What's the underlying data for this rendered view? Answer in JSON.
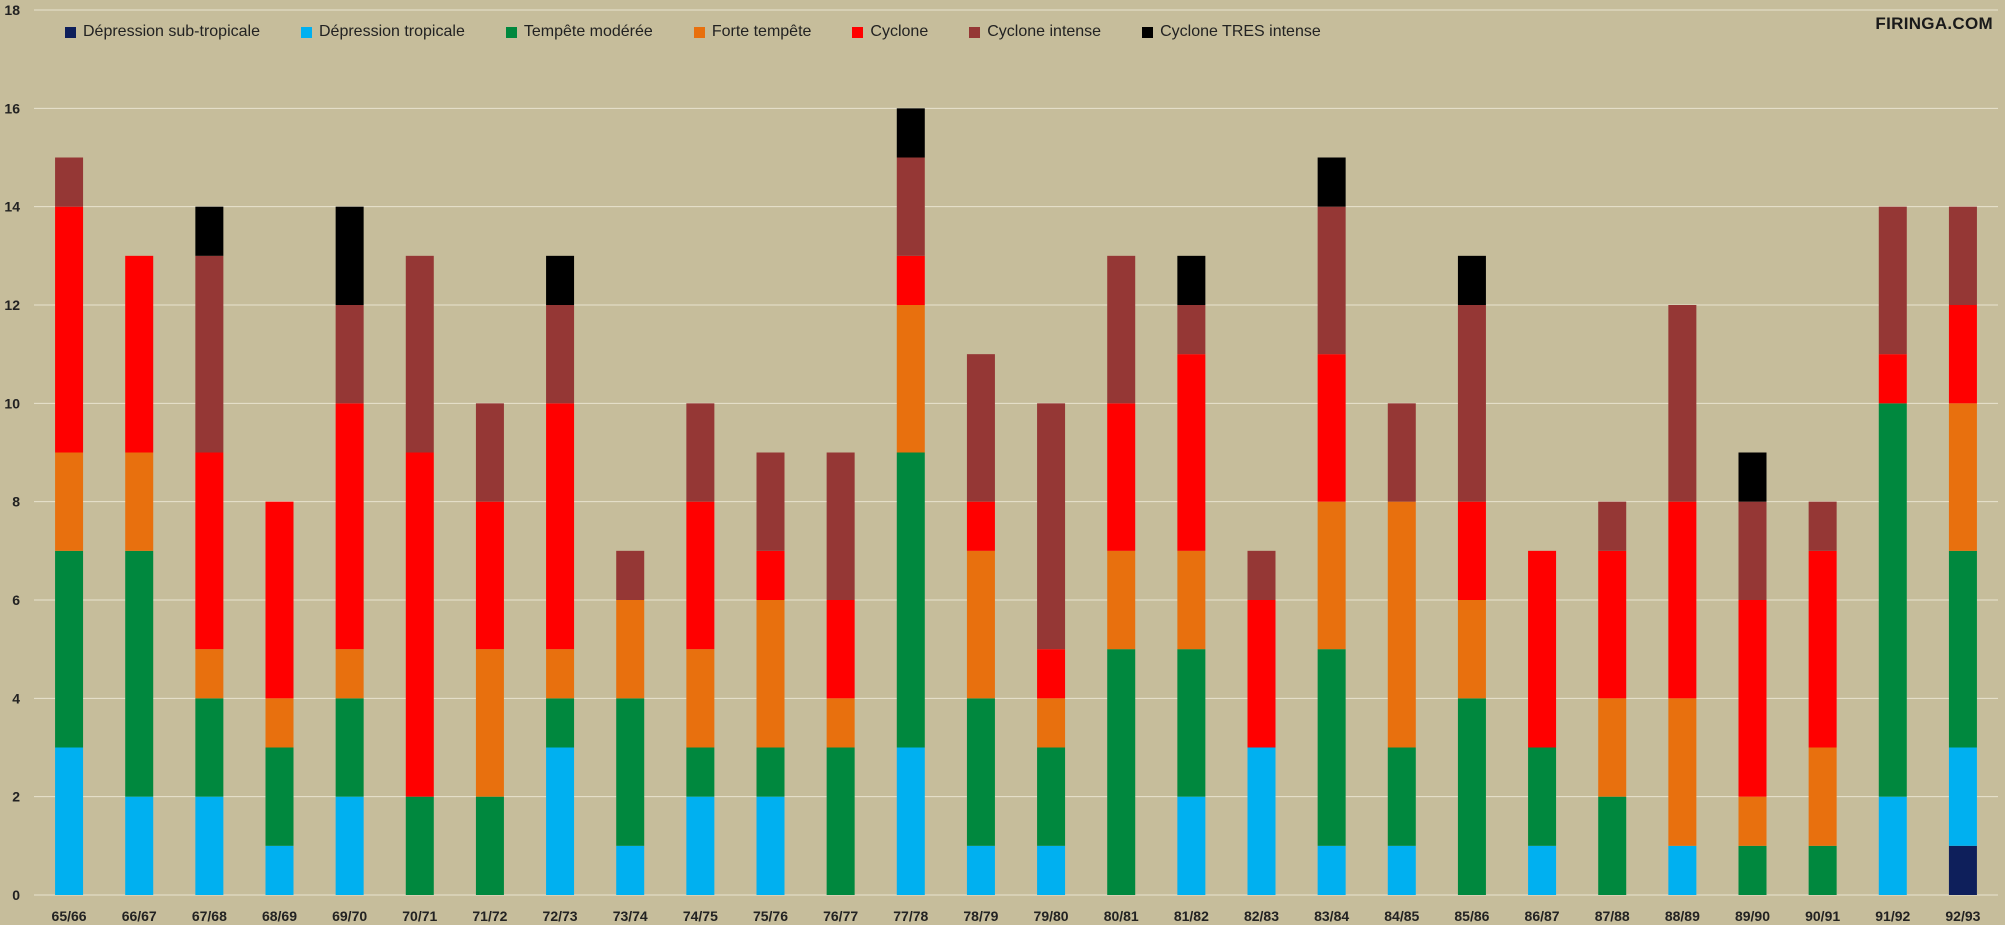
{
  "watermark": "FIRINGA.COM",
  "chart_data": {
    "type": "bar",
    "stacked": true,
    "categories": [
      "65/66",
      "66/67",
      "67/68",
      "68/69",
      "69/70",
      "70/71",
      "71/72",
      "72/73",
      "73/74",
      "74/75",
      "75/76",
      "76/77",
      "77/78",
      "78/79",
      "79/80",
      "80/81",
      "81/82",
      "82/83",
      "83/84",
      "84/85",
      "85/86",
      "86/87",
      "87/88",
      "88/89",
      "89/90",
      "90/91",
      "91/92",
      "92/93"
    ],
    "series": [
      {
        "name": "Dépression sub-tropicale",
        "color": "#0e1f5b",
        "values": [
          0,
          0,
          0,
          0,
          0,
          0,
          0,
          0,
          0,
          0,
          0,
          0,
          0,
          0,
          0,
          0,
          0,
          0,
          0,
          0,
          0,
          0,
          0,
          0,
          0,
          0,
          0,
          1
        ]
      },
      {
        "name": "Dépression tropicale",
        "color": "#00b0f0",
        "values": [
          3,
          2,
          2,
          1,
          2,
          0,
          0,
          3,
          1,
          2,
          2,
          0,
          3,
          1,
          1,
          0,
          2,
          3,
          1,
          1,
          0,
          1,
          0,
          1,
          0,
          0,
          2,
          2
        ]
      },
      {
        "name": "Tempête modérée",
        "color": "#00883e",
        "values": [
          4,
          5,
          2,
          2,
          2,
          2,
          2,
          1,
          3,
          1,
          1,
          3,
          6,
          3,
          2,
          5,
          3,
          0,
          4,
          2,
          4,
          2,
          2,
          0,
          1,
          1,
          8,
          4
        ]
      },
      {
        "name": "Forte tempête",
        "color": "#e8700e",
        "values": [
          2,
          2,
          1,
          1,
          1,
          0,
          3,
          1,
          2,
          2,
          3,
          1,
          3,
          3,
          1,
          2,
          2,
          0,
          3,
          5,
          2,
          0,
          2,
          3,
          1,
          2,
          0,
          3
        ]
      },
      {
        "name": "Cyclone",
        "color": "#ff0000",
        "values": [
          5,
          4,
          4,
          4,
          5,
          7,
          3,
          5,
          0,
          3,
          1,
          2,
          1,
          1,
          1,
          3,
          4,
          3,
          3,
          0,
          2,
          4,
          3,
          4,
          4,
          4,
          1,
          2
        ]
      },
      {
        "name": "Cyclone intense",
        "color": "#953735",
        "values": [
          1,
          0,
          4,
          0,
          2,
          4,
          2,
          2,
          1,
          2,
          2,
          3,
          2,
          3,
          5,
          3,
          1,
          1,
          3,
          2,
          4,
          0,
          1,
          4,
          2,
          1,
          3,
          2
        ]
      },
      {
        "name": "Cyclone TRES intense",
        "color": "#000000",
        "values": [
          0,
          0,
          1,
          0,
          2,
          0,
          0,
          1,
          0,
          0,
          0,
          0,
          1,
          0,
          0,
          0,
          1,
          0,
          1,
          0,
          1,
          0,
          0,
          0,
          1,
          0,
          0,
          0
        ]
      }
    ],
    "ylim": [
      0,
      18
    ],
    "yticks": [
      0,
      2,
      4,
      6,
      8,
      10,
      12,
      14,
      16,
      18
    ],
    "grid": true,
    "gridline_color": "#e8e3cf",
    "legend_position": "top-left"
  }
}
